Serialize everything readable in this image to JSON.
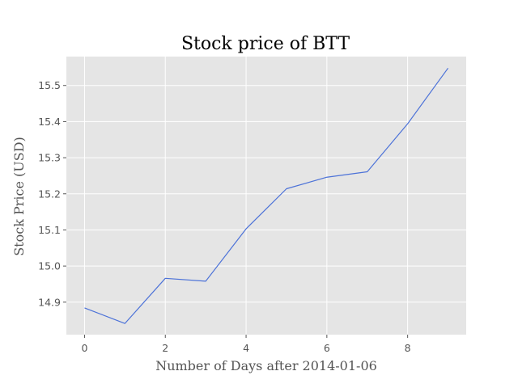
{
  "chart_data": {
    "type": "line",
    "title": "Stock price of BTT",
    "xlabel": "Number of Days after 2014-01-06",
    "ylabel": "Stock Price (USD)",
    "xlim": [
      -0.45,
      9.45
    ],
    "ylim": [
      14.81,
      15.58
    ],
    "xticks": [
      0,
      2,
      4,
      6,
      8
    ],
    "yticks": [
      14.9,
      15.0,
      15.1,
      15.2,
      15.3,
      15.4,
      15.5
    ],
    "xtick_labels": [
      "0",
      "2",
      "4",
      "6",
      "8"
    ],
    "ytick_labels": [
      "14.9",
      "15.0",
      "15.1",
      "15.2",
      "15.3",
      "15.4",
      "15.5"
    ],
    "grid": true,
    "style": {
      "background": "#e5e5e5",
      "grid_color": "#ffffff",
      "line_color": "#4c72d8"
    },
    "series": [
      {
        "x": [
          0,
          1,
          2,
          3,
          4,
          5,
          6,
          7,
          8,
          9
        ],
        "y": [
          14.884,
          14.841,
          14.966,
          14.958,
          15.103,
          15.214,
          15.246,
          15.261,
          15.394,
          15.548
        ]
      }
    ]
  }
}
